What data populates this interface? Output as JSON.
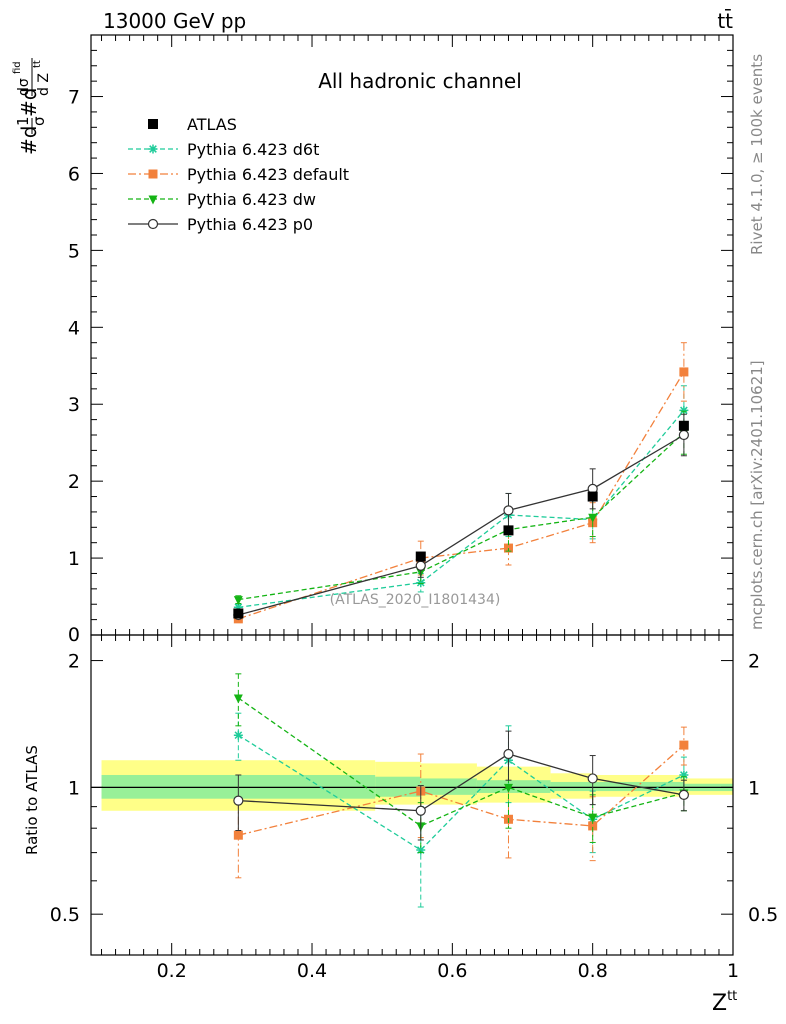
{
  "header": {
    "energy": "13000 GeV pp",
    "process": "tt̄"
  },
  "side_labels": {
    "rivet": "Rivet 4.1.0, ≥ 100k events",
    "source": "mcplots.cern.ch [arXiv:2401.10621]"
  },
  "chart_data": {
    "type": "scatter",
    "title": "All hadronic channel",
    "watermark": "(ATLAS_2020_I1801434)",
    "xlabel": "Z",
    "xlabel_sup": "tt",
    "ylabel": "#d1/σ#dσ^fid / d Z^tt",
    "ratio_ylabel": "Ratio to ATLAS",
    "xlim": [
      0.085,
      1.0
    ],
    "ylim": [
      0,
      7.8
    ],
    "ratio_ylim": [
      0.4,
      2.3
    ],
    "x_ticks": [
      "0.2",
      "0.4",
      "0.6",
      "0.8",
      "1"
    ],
    "y_ticks": [
      "1",
      "2",
      "3",
      "4",
      "5",
      "6",
      "7"
    ],
    "y_zero_label": "0",
    "ratio_ticks": [
      "0.5",
      "1",
      "2"
    ],
    "x": [
      0.295,
      0.555,
      0.68,
      0.8,
      0.93
    ],
    "band_edges": [
      0.1,
      0.49,
      0.555,
      0.635,
      0.74,
      0.8,
      0.93,
      1.0
    ],
    "band_yellow": [
      [
        0.88,
        1.16
      ],
      [
        0.91,
        1.15
      ],
      [
        0.91,
        1.14
      ],
      [
        0.92,
        1.12
      ],
      [
        0.94,
        1.08
      ],
      [
        0.95,
        1.07
      ],
      [
        0.96,
        1.05
      ]
    ],
    "band_green": [
      [
        0.94,
        1.07
      ],
      [
        0.95,
        1.06
      ],
      [
        0.96,
        1.05
      ],
      [
        0.97,
        1.04
      ],
      [
        0.98,
        1.03
      ],
      [
        0.98,
        1.03
      ],
      [
        0.98,
        1.02
      ]
    ],
    "data": {
      "name": "ATLAS",
      "color": "#000000",
      "values": [
        0.28,
        1.02,
        1.36,
        1.8,
        2.72
      ]
    },
    "series": [
      {
        "name": "Pythia 6.423 d6t",
        "color": "#1fcc9a",
        "marker": "star",
        "dash": "5,3",
        "values": [
          0.36,
          0.68,
          1.56,
          1.5,
          2.92
        ],
        "errors": [
          0.04,
          0.12,
          0.28,
          0.25,
          0.32
        ],
        "ratio": [
          1.33,
          0.71,
          1.16,
          0.84,
          1.07
        ],
        "ratio_err": [
          0.17,
          0.19,
          0.24,
          0.14,
          0.11
        ]
      },
      {
        "name": "Pythia 6.423 default",
        "color": "#f2813c",
        "marker": "square",
        "dash": "8,3,2,3",
        "values": [
          0.21,
          1.0,
          1.13,
          1.46,
          3.42
        ],
        "errors": [
          0.04,
          0.22,
          0.22,
          0.26,
          0.38
        ],
        "ratio": [
          0.77,
          0.98,
          0.84,
          0.81,
          1.26
        ],
        "ratio_err": [
          0.16,
          0.22,
          0.16,
          0.14,
          0.13
        ]
      },
      {
        "name": "Pythia 6.423 dw",
        "color": "#14b414",
        "marker": "triangle",
        "dash": "5,3",
        "values": [
          0.46,
          0.82,
          1.37,
          1.53,
          2.63
        ],
        "errors": [
          0.05,
          0.15,
          0.28,
          0.25,
          0.28
        ],
        "ratio": [
          1.63,
          0.81,
          1.0,
          0.85,
          0.97
        ],
        "ratio_err": [
          0.23,
          0.11,
          0.2,
          0.11,
          0.09
        ]
      },
      {
        "name": "Pythia 6.423 p0",
        "color": "#333333",
        "marker": "circle",
        "dash": "",
        "values": [
          0.26,
          0.9,
          1.62,
          1.9,
          2.6
        ],
        "errors": [
          0.04,
          0.15,
          0.22,
          0.26,
          0.27
        ],
        "ratio": [
          0.93,
          0.88,
          1.2,
          1.05,
          0.96
        ],
        "ratio_err": [
          0.14,
          0.13,
          0.16,
          0.14,
          0.08
        ]
      }
    ],
    "legend_placement": "top-left"
  }
}
